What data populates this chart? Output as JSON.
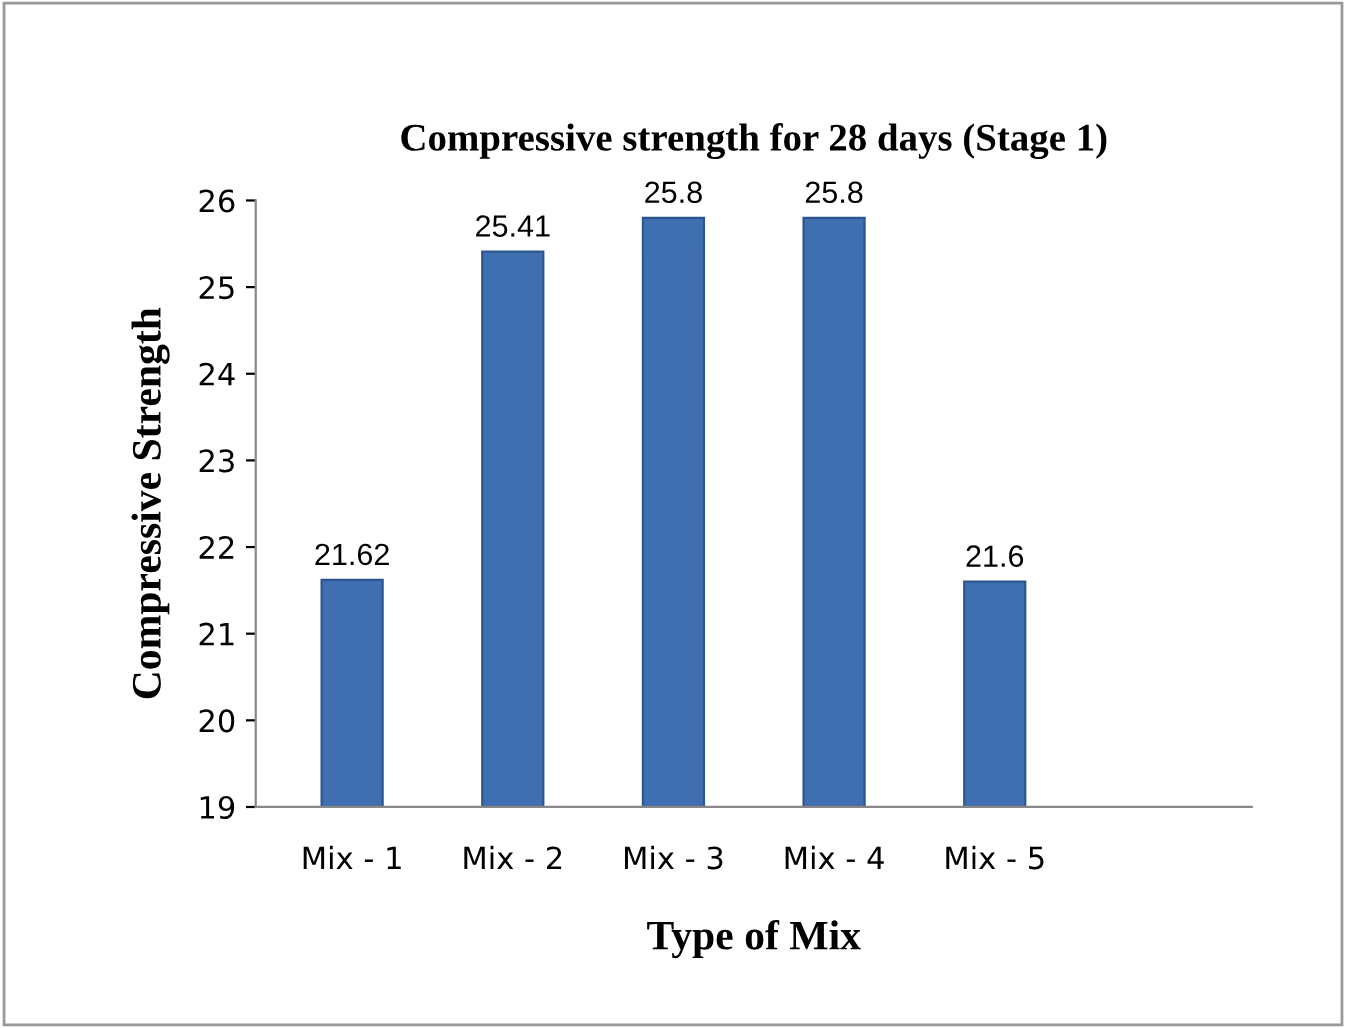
{
  "chart_data": {
    "type": "bar",
    "title": "Compressive strength for 28 days (Stage 1)",
    "xlabel": "Type of Mix",
    "ylabel": "Compressive Strength",
    "categories": [
      "Mix - 1",
      "Mix - 2",
      "Mix - 3",
      "Mix - 4",
      "Mix - 5"
    ],
    "values": [
      21.62,
      25.41,
      25.8,
      25.8,
      21.6
    ],
    "color": "#3f6fb0",
    "ylim": [
      19,
      26
    ],
    "yticks": [
      19,
      20,
      21,
      22,
      23,
      24,
      25,
      26
    ],
    "grid": false,
    "data_labels": true
  }
}
